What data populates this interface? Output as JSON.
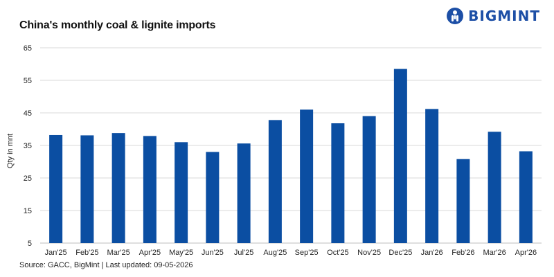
{
  "brand": {
    "name": "BIGMINT",
    "accent": "#1d4fa6"
  },
  "source_text": "Source: GACC, BigMint | Last updated: 09-05-2026",
  "chart_data": {
    "type": "bar",
    "title": "China's monthly coal & lignite imports",
    "xlabel": "",
    "ylabel": "Qty in mnt",
    "categories": [
      "Jan'25",
      "Feb'25",
      "Mar'25",
      "Apr'25",
      "May'25",
      "Jun'25",
      "Jul'25",
      "Aug'25",
      "Sep'25",
      "Oct'25",
      "Nov'25",
      "Dec'25",
      "Jan'26",
      "Feb'26",
      "Mar'26",
      "Apr'26"
    ],
    "values": [
      38.2,
      38.1,
      38.8,
      37.9,
      36.0,
      33.0,
      35.6,
      42.8,
      46.0,
      41.8,
      44.0,
      58.5,
      46.2,
      30.8,
      39.2,
      33.2
    ],
    "ylim": [
      5,
      65
    ],
    "yticks": [
      5,
      15,
      25,
      35,
      45,
      55,
      65
    ],
    "grid": true,
    "bar_color": "#0b4ea2",
    "grid_color": "#d9d9d9"
  }
}
